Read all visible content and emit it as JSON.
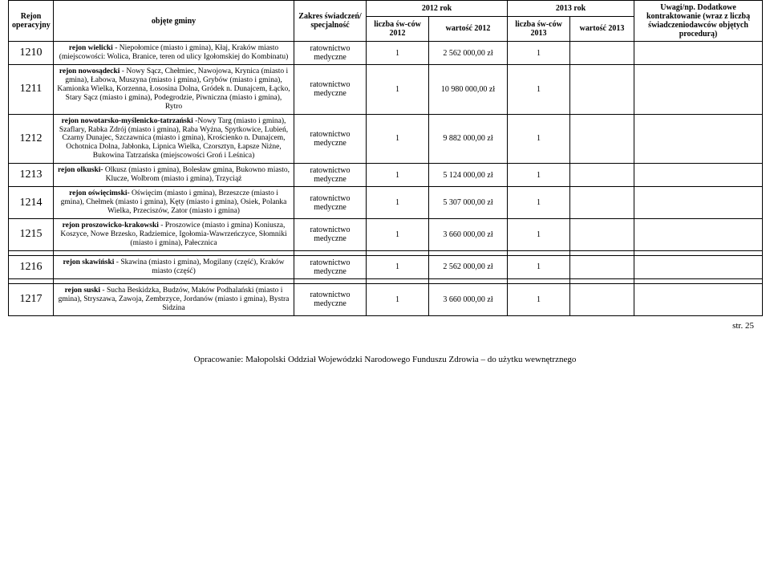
{
  "headers": {
    "rejon": "Rejon operacyjny",
    "gminy": "objęte gminy",
    "zakres": "Zakres świadczeń/ specjalność",
    "rok2012": "2012 rok",
    "rok2013": "2013 rok",
    "liczba2012": "liczba św-ców 2012",
    "wartosc2012": "wartość 2012",
    "liczba2013": "liczba św-ców 2013",
    "wartosc2013": "wartość 2013",
    "uwagi": "Uwagi/np. Dodatkowe kontraktowanie (wraz z liczbą świadczeniodawców objętych procedurą)"
  },
  "rows": [
    {
      "id": "1210",
      "desc_bold": "rejon wielicki",
      "desc_rest": " - Niepołomice (miasto i gmina), Kłaj, Kraków miasto (miejscowości: Wolica, Branice, teren od ulicy Igołomskiej do Kombinatu)",
      "zakres": "ratownictwo medyczne",
      "l2012": "1",
      "w2012": "2 562 000,00 zł",
      "l2013": "1",
      "w2013": "",
      "uwagi": ""
    },
    {
      "id": "1211",
      "desc_bold": "rejon nowosądecki",
      "desc_rest": " - Nowy Sącz, Chełmiec, Nawojowa, Krynica (miasto i gmina), Łabowa, Muszyna (miasto i gmina), Grybów (miasto i gmina), Kamionka Wielka, Korzenna, Łososina Dolna, Gródek n. Dunajcem, Łącko, Stary Sącz (miasto i gmina), Podegrodzie, Piwniczna (miasto i gmina), Rytro",
      "zakres": "ratownictwo medyczne",
      "l2012": "1",
      "w2012": "10 980 000,00 zł",
      "l2013": "1",
      "w2013": "",
      "uwagi": ""
    },
    {
      "id": "1212",
      "desc_bold": "rejon nowotarsko-myślenicko-tatrzański",
      "desc_rest": " -Nowy Targ (miasto i gmina), Szaflary, Rabka Zdrój (miasto i gmina), Raba Wyżna, Spytkowice, Lubień, Czarny Dunajec, Szczawnica (miasto i gmina), Krościenko n. Dunajcem, Ochotnica Dolna, Jabłonka, Lipnica Wielka, Czorsztyn, Łapsze Niżne, Bukowina Tatrzańska (miejscowości Groń i Leśnica)",
      "zakres": "ratownictwo medyczne",
      "l2012": "1",
      "w2012": "9 882 000,00 zł",
      "l2013": "1",
      "w2013": "",
      "uwagi": ""
    },
    {
      "id": "1213",
      "desc_bold": "rejon olkuski-",
      "desc_rest": " Olkusz (miasto i gmina), Bolesław gmina, Bukowno miasto, Klucze, Wolbrom (miasto i gmina), Trzyciąż",
      "zakres": "ratownictwo medyczne",
      "l2012": "1",
      "w2012": "5 124 000,00 zł",
      "l2013": "1",
      "w2013": "",
      "uwagi": ""
    },
    {
      "id": "1214",
      "desc_bold": "rejon oświęcimski-",
      "desc_rest": " Oświęcim (miasto i gmina), Brzeszcze (miasto i gmina), Chełmek (miasto i gmina), Kęty (miasto i gmina), Osiek, Polanka Wielka, Przeciszów, Zator (miasto i gmina)",
      "zakres": "ratownictwo medyczne",
      "l2012": "1",
      "w2012": "5 307 000,00 zł",
      "l2013": "1",
      "w2013": "",
      "uwagi": ""
    },
    {
      "id": "1215",
      "desc_bold": "rejon proszowicko-krakowski",
      "desc_rest": " - Proszowice (miasto i gmina) Koniusza, Koszyce, Nowe Brzesko, Radziemice, Igołomia-Wawrzeńczyce, Słomniki (miasto i gmina), Pałecznica",
      "zakres": "ratownictwo medyczne",
      "l2012": "1",
      "w2012": "3 660 000,00 zł",
      "l2013": "1",
      "w2013": "",
      "uwagi": ""
    },
    {
      "id": "1216",
      "desc_bold": "rejon skawiński",
      "desc_rest": " - Skawina (miasto i gmina), Mogilany (część), Kraków miasto (część)",
      "zakres": "ratownictwo medyczne",
      "l2012": "1",
      "w2012": "2 562 000,00 zł",
      "l2013": "1",
      "w2013": "",
      "uwagi": ""
    },
    {
      "id": "1217",
      "desc_bold": "rejon suski",
      "desc_rest": " - Sucha Beskidzka, Budzów, Maków Podhalański (miasto i gmina), Stryszawa, Zawoja, Zembrzyce, Jordanów (miasto i gmina), Bystra Sidzina",
      "zakres": "ratownictwo medyczne",
      "l2012": "1",
      "w2012": "3 660 000,00 zł",
      "l2013": "1",
      "w2013": "",
      "uwagi": ""
    }
  ],
  "footer": "Opracowanie: Małopolski Oddział Wojewódzki Narodowego Funduszu Zdrowia – do użytku wewnętrznego",
  "pageno": "str. 25"
}
